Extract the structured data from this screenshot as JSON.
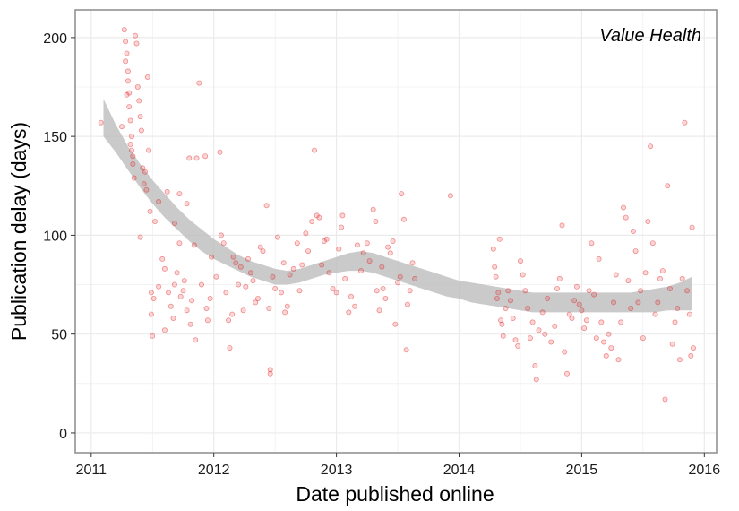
{
  "chart_data": {
    "type": "scatter",
    "annotation": "Value Health",
    "xlabel": "Date published online",
    "ylabel": "Publication delay (days)",
    "xlim": [
      2010.87,
      2016.1
    ],
    "ylim": [
      -10,
      214
    ],
    "x_ticks": [
      2011,
      2012,
      2013,
      2014,
      2015,
      2016
    ],
    "y_ticks": [
      0,
      50,
      100,
      150,
      200
    ],
    "grid": true,
    "legend": "none",
    "colors": {
      "points": "#e41a1c",
      "ribbon": "#bdbdbd",
      "grid": "#ebebeb",
      "panel_border": "#8c8c8c"
    },
    "smooth_band": {
      "x": [
        2011.1,
        2011.2,
        2011.3,
        2011.4,
        2011.5,
        2011.6,
        2011.7,
        2011.8,
        2011.9,
        2012.0,
        2012.1,
        2012.2,
        2012.3,
        2012.4,
        2012.5,
        2012.6,
        2012.7,
        2012.8,
        2012.9,
        2013.0,
        2013.1,
        2013.2,
        2013.3,
        2013.4,
        2013.5,
        2013.6,
        2013.7,
        2013.8,
        2013.9,
        2014.0,
        2014.1,
        2014.2,
        2014.3,
        2014.4,
        2014.5,
        2014.6,
        2014.7,
        2014.8,
        2014.9,
        2015.0,
        2015.1,
        2015.2,
        2015.3,
        2015.4,
        2015.5,
        2015.6,
        2015.7,
        2015.8,
        2015.9
      ],
      "upper": [
        169,
        156,
        145,
        136,
        128,
        121,
        114,
        108,
        103,
        98,
        94,
        90,
        87,
        85,
        83,
        82,
        83,
        85,
        87,
        89,
        91,
        92,
        91,
        89,
        87,
        85,
        83,
        81,
        79,
        77,
        76,
        75,
        74,
        73,
        72,
        71,
        71,
        71,
        71,
        71,
        71,
        71,
        71,
        71,
        72,
        73,
        74,
        76,
        79
      ],
      "lower": [
        150,
        142,
        133,
        124,
        116,
        109,
        103,
        97,
        92,
        88,
        85,
        82,
        79,
        77,
        75,
        75,
        76,
        78,
        80,
        81,
        82,
        82,
        81,
        79,
        77,
        75,
        73,
        71,
        69,
        68,
        66,
        65,
        64,
        63,
        62,
        61,
        61,
        61,
        61,
        61,
        61,
        61,
        61,
        61,
        61,
        61,
        62,
        62,
        62
      ]
    },
    "points": [
      [
        2011.08,
        157
      ],
      [
        2011.25,
        155
      ],
      [
        2011.27,
        204
      ],
      [
        2011.28,
        198
      ],
      [
        2011.29,
        192
      ],
      [
        2011.3,
        183
      ],
      [
        2011.3,
        178
      ],
      [
        2011.31,
        172
      ],
      [
        2011.31,
        165
      ],
      [
        2011.32,
        158
      ],
      [
        2011.33,
        150
      ],
      [
        2011.33,
        143
      ],
      [
        2011.34,
        136
      ],
      [
        2011.35,
        129
      ],
      [
        2011.28,
        188
      ],
      [
        2011.29,
        171
      ],
      [
        2011.32,
        146
      ],
      [
        2011.34,
        140
      ],
      [
        2011.36,
        201
      ],
      [
        2011.37,
        197
      ],
      [
        2011.38,
        175
      ],
      [
        2011.39,
        168
      ],
      [
        2011.4,
        160
      ],
      [
        2011.41,
        153
      ],
      [
        2011.42,
        134
      ],
      [
        2011.43,
        126
      ],
      [
        2011.44,
        132
      ],
      [
        2011.45,
        123
      ],
      [
        2011.46,
        180
      ],
      [
        2011.47,
        143
      ],
      [
        2011.48,
        112
      ],
      [
        2011.4,
        99
      ],
      [
        2011.49,
        71
      ],
      [
        2011.49,
        60
      ],
      [
        2011.5,
        49
      ],
      [
        2011.51,
        68
      ],
      [
        2011.52,
        107
      ],
      [
        2011.55,
        117
      ],
      [
        2011.58,
        88
      ],
      [
        2011.6,
        83
      ],
      [
        2011.62,
        122
      ],
      [
        2011.63,
        71
      ],
      [
        2011.65,
        64
      ],
      [
        2011.67,
        58
      ],
      [
        2011.68,
        75
      ],
      [
        2011.7,
        81
      ],
      [
        2011.72,
        96
      ],
      [
        2011.73,
        69
      ],
      [
        2011.75,
        72
      ],
      [
        2011.76,
        77
      ],
      [
        2011.78,
        62
      ],
      [
        2011.78,
        116
      ],
      [
        2011.8,
        139
      ],
      [
        2011.81,
        55
      ],
      [
        2011.82,
        67
      ],
      [
        2011.84,
        95
      ],
      [
        2011.85,
        47
      ],
      [
        2011.86,
        139
      ],
      [
        2011.88,
        177
      ],
      [
        2011.9,
        75
      ],
      [
        2011.93,
        140
      ],
      [
        2011.94,
        63
      ],
      [
        2011.95,
        57
      ],
      [
        2011.97,
        68
      ],
      [
        2011.98,
        89
      ],
      [
        2011.68,
        106
      ],
      [
        2011.72,
        121
      ],
      [
        2011.6,
        52
      ],
      [
        2011.55,
        74
      ],
      [
        2012.02,
        79
      ],
      [
        2012.05,
        142
      ],
      [
        2012.06,
        100
      ],
      [
        2012.08,
        96
      ],
      [
        2012.1,
        71
      ],
      [
        2012.12,
        57
      ],
      [
        2012.13,
        43
      ],
      [
        2012.15,
        60
      ],
      [
        2012.16,
        89
      ],
      [
        2012.18,
        86
      ],
      [
        2012.2,
        75
      ],
      [
        2012.22,
        84
      ],
      [
        2012.24,
        62
      ],
      [
        2012.26,
        74
      ],
      [
        2012.28,
        88
      ],
      [
        2012.3,
        81
      ],
      [
        2012.32,
        77
      ],
      [
        2012.34,
        66
      ],
      [
        2012.36,
        68
      ],
      [
        2012.38,
        94
      ],
      [
        2012.4,
        92
      ],
      [
        2012.43,
        115
      ],
      [
        2012.45,
        63
      ],
      [
        2012.46,
        32
      ],
      [
        2012.46,
        30
      ],
      [
        2012.48,
        79
      ],
      [
        2012.5,
        73
      ],
      [
        2012.52,
        99
      ],
      [
        2012.55,
        71
      ],
      [
        2012.57,
        86
      ],
      [
        2012.58,
        61
      ],
      [
        2012.6,
        64
      ],
      [
        2012.62,
        80
      ],
      [
        2012.65,
        83
      ],
      [
        2012.68,
        96
      ],
      [
        2012.7,
        72
      ],
      [
        2012.72,
        85
      ],
      [
        2012.75,
        101
      ],
      [
        2012.77,
        92
      ],
      [
        2012.8,
        107
      ],
      [
        2012.82,
        143
      ],
      [
        2012.84,
        110
      ],
      [
        2012.86,
        109
      ],
      [
        2012.88,
        85
      ],
      [
        2012.9,
        97
      ],
      [
        2012.92,
        98
      ],
      [
        2012.94,
        81
      ],
      [
        2012.97,
        73
      ],
      [
        2013.0,
        71
      ],
      [
        2013.02,
        93
      ],
      [
        2013.04,
        104
      ],
      [
        2013.05,
        110
      ],
      [
        2013.07,
        78
      ],
      [
        2013.1,
        61
      ],
      [
        2013.12,
        69
      ],
      [
        2013.15,
        64
      ],
      [
        2013.17,
        95
      ],
      [
        2013.2,
        82
      ],
      [
        2013.22,
        91
      ],
      [
        2013.25,
        96
      ],
      [
        2013.27,
        87
      ],
      [
        2013.3,
        113
      ],
      [
        2013.32,
        107
      ],
      [
        2013.33,
        72
      ],
      [
        2013.35,
        62
      ],
      [
        2013.37,
        84
      ],
      [
        2013.38,
        73
      ],
      [
        2013.4,
        68
      ],
      [
        2013.42,
        94
      ],
      [
        2013.44,
        91
      ],
      [
        2013.46,
        97
      ],
      [
        2013.48,
        55
      ],
      [
        2013.5,
        76
      ],
      [
        2013.52,
        79
      ],
      [
        2013.53,
        121
      ],
      [
        2013.55,
        108
      ],
      [
        2013.57,
        42
      ],
      [
        2013.58,
        65
      ],
      [
        2013.6,
        72
      ],
      [
        2013.62,
        86
      ],
      [
        2013.64,
        78
      ],
      [
        2013.93,
        120
      ],
      [
        2014.28,
        93
      ],
      [
        2014.29,
        84
      ],
      [
        2014.3,
        79
      ],
      [
        2014.31,
        68
      ],
      [
        2014.32,
        71
      ],
      [
        2014.33,
        98
      ],
      [
        2014.34,
        57
      ],
      [
        2014.35,
        55
      ],
      [
        2014.36,
        49
      ],
      [
        2014.38,
        63
      ],
      [
        2014.4,
        72
      ],
      [
        2014.42,
        67
      ],
      [
        2014.44,
        58
      ],
      [
        2014.46,
        47
      ],
      [
        2014.48,
        44
      ],
      [
        2014.5,
        87
      ],
      [
        2014.52,
        80
      ],
      [
        2014.54,
        72
      ],
      [
        2014.56,
        63
      ],
      [
        2014.58,
        48
      ],
      [
        2014.6,
        56
      ],
      [
        2014.62,
        34
      ],
      [
        2014.63,
        27
      ],
      [
        2014.65,
        52
      ],
      [
        2014.68,
        61
      ],
      [
        2014.7,
        50
      ],
      [
        2014.72,
        68
      ],
      [
        2014.75,
        46
      ],
      [
        2014.78,
        54
      ],
      [
        2014.8,
        73
      ],
      [
        2014.82,
        78
      ],
      [
        2014.84,
        105
      ],
      [
        2014.86,
        41
      ],
      [
        2014.88,
        30
      ],
      [
        2014.9,
        60
      ],
      [
        2014.92,
        58
      ],
      [
        2014.94,
        67
      ],
      [
        2014.96,
        74
      ],
      [
        2014.98,
        65
      ],
      [
        2015.0,
        62
      ],
      [
        2015.02,
        53
      ],
      [
        2015.04,
        57
      ],
      [
        2015.06,
        72
      ],
      [
        2015.08,
        96
      ],
      [
        2015.1,
        70
      ],
      [
        2015.12,
        48
      ],
      [
        2015.14,
        88
      ],
      [
        2015.16,
        56
      ],
      [
        2015.18,
        46
      ],
      [
        2015.2,
        39
      ],
      [
        2015.22,
        50
      ],
      [
        2015.24,
        43
      ],
      [
        2015.26,
        66
      ],
      [
        2015.28,
        80
      ],
      [
        2015.3,
        37
      ],
      [
        2015.32,
        56
      ],
      [
        2015.34,
        114
      ],
      [
        2015.36,
        109
      ],
      [
        2015.38,
        77
      ],
      [
        2015.4,
        63
      ],
      [
        2015.42,
        102
      ],
      [
        2015.44,
        92
      ],
      [
        2015.46,
        66
      ],
      [
        2015.48,
        72
      ],
      [
        2015.5,
        48
      ],
      [
        2015.52,
        81
      ],
      [
        2015.54,
        107
      ],
      [
        2015.56,
        145
      ],
      [
        2015.58,
        96
      ],
      [
        2015.6,
        60
      ],
      [
        2015.62,
        66
      ],
      [
        2015.64,
        78
      ],
      [
        2015.66,
        82
      ],
      [
        2015.68,
        17
      ],
      [
        2015.7,
        125
      ],
      [
        2015.72,
        73
      ],
      [
        2015.74,
        45
      ],
      [
        2015.76,
        56
      ],
      [
        2015.78,
        63
      ],
      [
        2015.8,
        37
      ],
      [
        2015.82,
        78
      ],
      [
        2015.84,
        157
      ],
      [
        2015.86,
        72
      ],
      [
        2015.88,
        60
      ],
      [
        2015.89,
        39
      ],
      [
        2015.9,
        104
      ],
      [
        2015.91,
        43
      ]
    ]
  }
}
